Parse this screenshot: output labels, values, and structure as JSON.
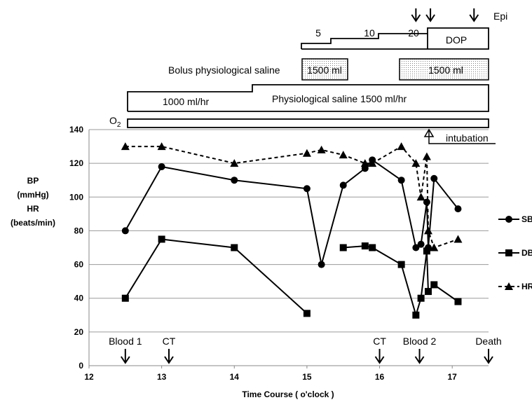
{
  "chart_data": {
    "type": "line",
    "xlabel": "Time Course ( o'clock )",
    "ylabel_lines": [
      "BP",
      "(mmHg)",
      "HR",
      "(beats/min)"
    ],
    "xlim": [
      12,
      17.5
    ],
    "ylim": [
      0,
      140
    ],
    "x_ticks": [
      "12",
      "13",
      "14",
      "15",
      "16",
      "17"
    ],
    "y_ticks": [
      "0",
      "20",
      "40",
      "60",
      "80",
      "100",
      "120",
      "140"
    ],
    "grid": true,
    "legend_position": "right",
    "series": [
      {
        "name": "SB",
        "marker": "circle",
        "dashed": false,
        "segments": [
          [
            [
              12.5,
              80
            ],
            [
              13.0,
              118
            ],
            [
              14.0,
              110
            ],
            [
              15.0,
              105
            ],
            [
              15.2,
              60
            ],
            [
              15.5,
              107
            ],
            [
              15.8,
              117
            ],
            [
              15.9,
              122
            ],
            [
              16.3,
              110
            ],
            [
              16.5,
              70
            ],
            [
              16.57,
              72
            ],
            [
              16.65,
              97
            ],
            [
              16.67,
              70
            ],
            [
              16.75,
              111
            ],
            [
              17.08,
              93
            ]
          ]
        ]
      },
      {
        "name": "DB",
        "marker": "square",
        "dashed": false,
        "segments": [
          [
            [
              12.5,
              40
            ],
            [
              13.0,
              75
            ],
            [
              14.0,
              70
            ],
            [
              15.0,
              31
            ]
          ],
          [
            [
              15.5,
              70
            ],
            [
              15.8,
              71
            ],
            [
              15.9,
              70
            ],
            [
              16.3,
              60
            ],
            [
              16.5,
              30
            ],
            [
              16.57,
              40
            ],
            [
              16.65,
              68
            ],
            [
              16.67,
              44
            ],
            [
              16.75,
              48
            ],
            [
              17.08,
              38
            ]
          ]
        ]
      },
      {
        "name": "HR",
        "marker": "triangle",
        "dashed": true,
        "segments": [
          [
            [
              12.5,
              130
            ],
            [
              13.0,
              130
            ],
            [
              14.0,
              120
            ],
            [
              15.0,
              126
            ],
            [
              15.2,
              128
            ],
            [
              15.5,
              125
            ],
            [
              15.8,
              120
            ],
            [
              15.9,
              120
            ],
            [
              16.3,
              130
            ],
            [
              16.5,
              120
            ],
            [
              16.57,
              100
            ],
            [
              16.65,
              124
            ],
            [
              16.67,
              80
            ],
            [
              16.75,
              70
            ],
            [
              17.08,
              75
            ]
          ]
        ]
      }
    ],
    "events": [
      {
        "label": "Blood 1",
        "x": 12.5
      },
      {
        "label": "CT",
        "x": 13.1
      },
      {
        "label": "CT",
        "x": 16.0
      },
      {
        "label": "Blood 2",
        "x": 16.55
      },
      {
        "label": "Death",
        "x": 17.5
      }
    ],
    "annotations": {
      "epi_label": "Epi",
      "epi_times": [
        16.5,
        16.7,
        17.3
      ],
      "dop_label": "DOP",
      "dop_steps": [
        "5",
        "10",
        "20"
      ],
      "bolus_label": "Bolus physiological saline",
      "bolus_1": "1500 ml",
      "bolus_2": "1500 ml",
      "saline_rate_1": "1000 ml/hr",
      "saline_label": "Physiological saline  1500 ml/hr",
      "o2_label": "O",
      "o2_sub": "2",
      "intubation_label": "intubation"
    }
  }
}
